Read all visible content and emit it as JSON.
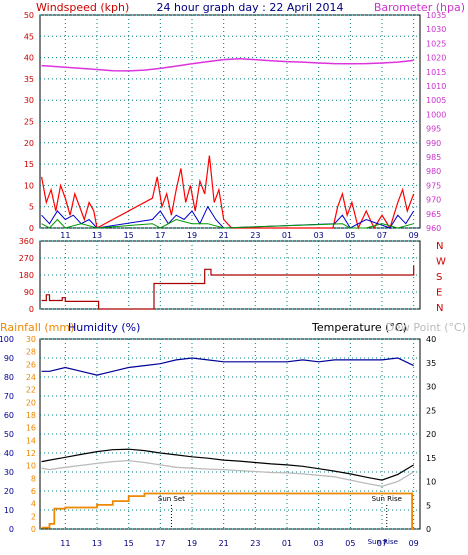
{
  "header": {
    "left_label": "Windspeed (kph)",
    "title": "24 hour graph day : 22 April 2014",
    "right_label": "Barometer (hpa)"
  },
  "bottom_header": {
    "rainfall_label": "Rainfall (mm)",
    "humidity_label": "Humidity (%)",
    "temperature_label": "Temperature (°C)",
    "dewpoint_label": "Dew Point (°C)"
  },
  "colors": {
    "wind_axis": "#cc0000",
    "baro_axis": "#cc33cc",
    "barometer": "#dd33dd",
    "windspeed": "#ff0000",
    "gust_blue": "#0000cc",
    "gust_green": "#009900",
    "direction": "#aa0000",
    "humidity": "#000099",
    "temperature": "#000000",
    "dewpoint": "#bbbbbb",
    "rainfall": "#ee8800",
    "grid": "#008080"
  },
  "chart_data": [
    {
      "type": "line",
      "name": "wind-barometer",
      "x_tick_labels": [
        "11",
        "13",
        "15",
        "17",
        "19",
        "21",
        "23",
        "01",
        "03",
        "05",
        "07",
        "09"
      ],
      "left_axis": {
        "label": "Windspeed (kph)",
        "ylim": [
          0,
          50
        ],
        "ticks": [
          0,
          5,
          10,
          15,
          20,
          25,
          30,
          35,
          40,
          45,
          50
        ]
      },
      "right_axis": {
        "label": "Barometer (hpa)",
        "ylim": [
          960,
          1035
        ],
        "ticks": [
          960,
          965,
          970,
          975,
          980,
          985,
          990,
          995,
          1000,
          1005,
          1010,
          1015,
          1020,
          1025,
          1030,
          1035
        ]
      },
      "grid": true,
      "barometer": {
        "x": [
          9.5,
          10,
          11,
          12,
          13,
          14,
          15,
          16,
          17,
          18,
          19,
          20,
          21,
          22,
          23,
          24,
          25,
          26,
          27,
          28,
          29,
          30,
          31,
          32,
          33
        ],
        "y": [
          1017.2,
          1017.0,
          1016.6,
          1016.2,
          1015.8,
          1015.4,
          1015.3,
          1015.6,
          1016.2,
          1017.0,
          1017.8,
          1018.6,
          1019.3,
          1019.6,
          1019.3,
          1018.9,
          1018.6,
          1018.4,
          1018.1,
          1017.9,
          1017.8,
          1017.9,
          1018.1,
          1018.4,
          1019.0
        ]
      },
      "windspeed": {
        "x": [
          9.5,
          9.8,
          10.1,
          10.4,
          10.7,
          11.0,
          11.3,
          11.6,
          11.9,
          12.2,
          12.5,
          12.8,
          13.0,
          16.5,
          16.8,
          17.1,
          17.4,
          17.7,
          18.0,
          18.3,
          18.6,
          18.9,
          19.2,
          19.5,
          19.8,
          20.1,
          20.4,
          20.7,
          21.0,
          21.5,
          27.9,
          28.2,
          28.5,
          28.8,
          29.1,
          29.5,
          30.0,
          30.5,
          31.0,
          31.5,
          32.0,
          32.3,
          32.6,
          32.9,
          33.0
        ],
        "y": [
          12,
          6,
          9,
          4,
          10,
          7,
          3,
          8,
          5,
          2,
          6,
          4,
          0,
          7,
          12,
          5,
          8,
          3,
          9,
          14,
          6,
          10,
          4,
          11,
          8,
          17,
          6,
          9,
          2,
          0,
          0,
          5,
          8,
          3,
          6,
          0,
          4,
          0,
          3,
          0,
          6,
          9,
          4,
          7,
          8
        ]
      },
      "gust_blue": {
        "x": [
          9.5,
          10.0,
          10.5,
          11.0,
          11.5,
          12.0,
          12.5,
          13.0,
          16.5,
          17.0,
          17.5,
          18.0,
          18.5,
          19.0,
          19.5,
          20.0,
          20.5,
          21.0,
          28.0,
          28.5,
          29.0,
          30.0,
          31.5,
          32.0,
          32.5,
          33.0
        ],
        "y": [
          3,
          1,
          4,
          2,
          3,
          1,
          2,
          0,
          2,
          4,
          1,
          3,
          2,
          4,
          1,
          5,
          2,
          0,
          1,
          3,
          0,
          2,
          0,
          3,
          1,
          4
        ]
      },
      "gust_green": {
        "x": [
          9.5,
          10.0,
          10.5,
          11.0,
          12.0,
          13.0,
          16.5,
          17.0,
          18.0,
          19.0,
          20.0,
          21.0,
          28.5,
          29.0,
          30.0,
          31.0,
          32.0,
          33.0
        ],
        "y": [
          1,
          0,
          2,
          0,
          1,
          0,
          1,
          0,
          2,
          1,
          1,
          0,
          1,
          0,
          0,
          1,
          0,
          1
        ]
      }
    },
    {
      "type": "line",
      "name": "wind-direction",
      "ylim": [
        0,
        360
      ],
      "ticks": [
        0,
        90,
        180,
        270,
        360
      ],
      "compass_labels": [
        "N",
        "W",
        "S",
        "E",
        "N"
      ],
      "series": [
        {
          "name": "direction",
          "x": [
            9.5,
            9.8,
            10.0,
            10.5,
            10.8,
            11.0,
            13.0,
            13.1,
            15.0,
            15.1,
            16.5,
            16.6,
            19.8,
            20.0,
            20.2,
            32.8,
            33.0
          ],
          "y": [
            45,
            75,
            45,
            45,
            60,
            40,
            40,
            0,
            0,
            0,
            0,
            135,
            210,
            210,
            180,
            180,
            230
          ]
        }
      ]
    },
    {
      "type": "line",
      "name": "temperature-humidity-rain",
      "x_tick_labels": [
        "11",
        "13",
        "15",
        "17",
        "19",
        "21",
        "23",
        "01",
        "03",
        "05",
        "07",
        "09"
      ],
      "rainfall_axis": {
        "label": "Rainfall (mm)",
        "ticks": [
          0,
          2,
          4,
          6,
          8,
          10,
          12,
          14,
          16,
          18,
          20,
          22,
          24,
          26,
          28,
          30
        ]
      },
      "humidity_axis": {
        "label": "Humidity (%)",
        "ticks": [
          0,
          10,
          20,
          30,
          40,
          50,
          60,
          70,
          80,
          90,
          100
        ]
      },
      "temperature_axis": {
        "label": "Temperature (°C)",
        "ticks": [
          0,
          5,
          10,
          15,
          20,
          25,
          30,
          35,
          40
        ]
      },
      "annotations": [
        "Sun Set",
        "Sun Rise",
        "Sun Rise"
      ],
      "humidity": {
        "x": [
          9.5,
          10,
          11,
          12,
          13,
          14,
          15,
          16,
          17,
          18,
          19,
          20,
          21,
          22,
          23,
          24,
          25,
          26,
          27,
          28,
          29,
          30,
          31,
          32,
          33
        ],
        "y": [
          83,
          83,
          85,
          83,
          81,
          83,
          85,
          86,
          87,
          89,
          90,
          89,
          88,
          88,
          88,
          88,
          88,
          89,
          88,
          89,
          89,
          89,
          89,
          90,
          86
        ]
      },
      "temperature": {
        "x": [
          9.5,
          10,
          11,
          12,
          13,
          14,
          15,
          16,
          17,
          18,
          19,
          20,
          21,
          22,
          23,
          24,
          25,
          26,
          27,
          28,
          29,
          30,
          31,
          32,
          33
        ],
        "y": [
          14.2,
          14.5,
          15.1,
          15.7,
          16.3,
          16.7,
          16.8,
          16.5,
          16.0,
          15.6,
          15.2,
          14.9,
          14.5,
          14.3,
          14.0,
          13.7,
          13.5,
          13.2,
          12.7,
          12.2,
          11.6,
          10.9,
          10.3,
          11.5,
          13.5
        ]
      },
      "dewpoint": {
        "x": [
          9.5,
          10,
          11,
          12,
          13,
          14,
          15,
          16,
          17,
          18,
          19,
          20,
          21,
          22,
          23,
          24,
          25,
          26,
          27,
          28,
          29,
          30,
          31,
          32,
          33
        ],
        "y": [
          12.8,
          12.5,
          13.0,
          13.4,
          13.8,
          14.2,
          14.4,
          14.0,
          13.5,
          13.0,
          12.8,
          12.6,
          12.5,
          12.3,
          12.1,
          11.9,
          11.8,
          11.6,
          11.3,
          11.0,
          10.3,
          9.6,
          9.0,
          10.0,
          12.0
        ]
      },
      "rainfall": {
        "x": [
          9.5,
          10.0,
          10.3,
          11.0,
          12.0,
          13.0,
          14.0,
          15.0,
          16.0,
          17.0,
          20.0,
          25.0,
          30.0,
          32.8,
          32.9,
          33.0
        ],
        "y": [
          0.2,
          0.8,
          3.2,
          3.4,
          3.4,
          3.8,
          4.4,
          5.2,
          5.6,
          5.6,
          5.6,
          5.6,
          5.6,
          5.6,
          0.0,
          0.0
        ]
      }
    }
  ]
}
